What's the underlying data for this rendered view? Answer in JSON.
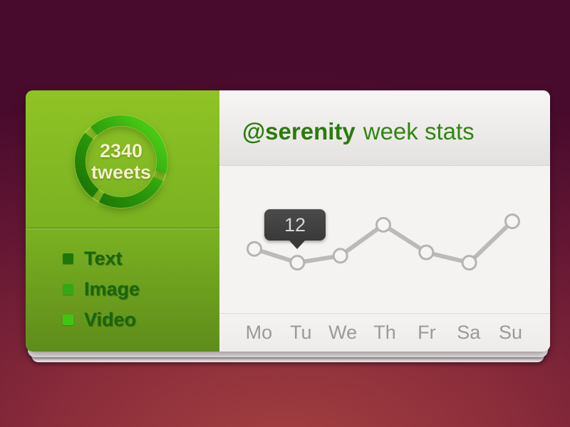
{
  "sidebar": {
    "counter": {
      "value": "2340",
      "unit": "tweets"
    },
    "menu": [
      {
        "label": "Text",
        "bullet_color": "#1e770d"
      },
      {
        "label": "Image",
        "bullet_color": "#35a816"
      },
      {
        "label": "Video",
        "bullet_color": "#3fc615"
      }
    ]
  },
  "header": {
    "handle": "@serenity",
    "title": "week stats"
  },
  "chart_data": {
    "type": "line",
    "title": "@serenity week stats",
    "categories": [
      "Mo",
      "Tu",
      "We",
      "Th",
      "Fr",
      "Sa",
      "Su"
    ],
    "values": [
      14,
      12,
      13,
      17.5,
      13.5,
      12,
      18
    ],
    "highlight": {
      "index": 1,
      "label": "12"
    },
    "ylim": [
      10,
      20
    ],
    "grid": false,
    "legend": false,
    "xlabel": "",
    "ylabel": "",
    "line_color": "#bbbab8",
    "point_fill": "#f6f5f3",
    "point_stroke": "#b5b4b2",
    "tooltip_bg": "#3e3e3e"
  },
  "colors": {
    "sidebar_top": "#8fc325",
    "sidebar_bottom": "#5f8c1b",
    "ring_bright": "#48ca16",
    "ring_dark": "#1d7a06",
    "counter_text": "#f5efca",
    "header_green": "#2a7c0b",
    "panel_bg": "#f4f3f1",
    "day_label": "#9a9a9a",
    "background_center": "#a44140",
    "background_edge": "#490b2d"
  }
}
